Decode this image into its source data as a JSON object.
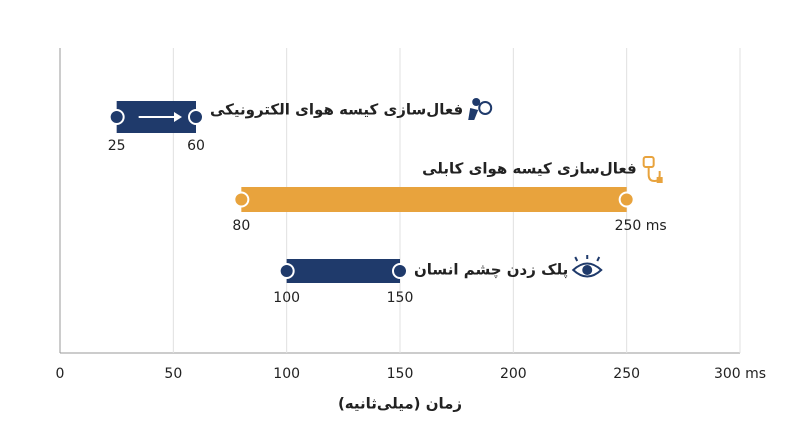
{
  "chart_data": {
    "type": "range-bar",
    "x_label": "زمان (میلی‌ثانیه)",
    "xlim": [
      0,
      300
    ],
    "xticks": [
      0,
      50,
      100,
      150,
      200,
      250,
      {
        "value": 300,
        "label": "300 ms"
      }
    ],
    "grid": true,
    "series": [
      {
        "name": "فعال‌سازی کیسه هوای الکترونیکی",
        "color": "#1f3a6b",
        "values": [
          25,
          60
        ]
      },
      {
        "name": "فعال‌سازی کیسه هوای کابلی",
        "color": "#e8a33d",
        "values": [
          80,
          250
        ],
        "value_labels": [
          "80",
          "250 ms"
        ]
      },
      {
        "name": "پلک زدن چشم انسان",
        "color": "#1f3a6b",
        "values": [
          100,
          150
        ]
      }
    ]
  }
}
